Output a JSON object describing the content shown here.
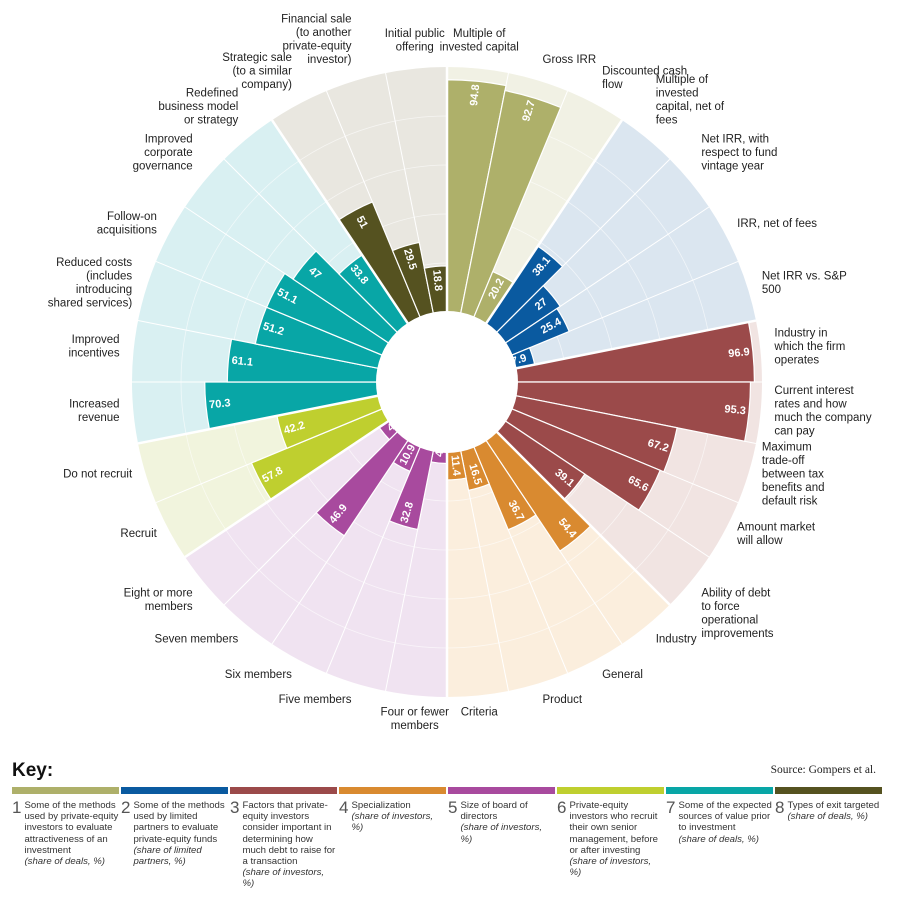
{
  "key_title": "Key:",
  "source": "Source: Gompers et al.",
  "key": [
    {
      "num": "1",
      "color": "#aeb06a",
      "text": "Some of the methods used by private-equity investors to evaluate attractiveness of an investment",
      "sub": "(share of deals, %)"
    },
    {
      "num": "2",
      "color": "#0a5aa0",
      "text": "Some of the methods used by limited partners to evaluate private-equity funds",
      "sub": "(share of limited partners, %)"
    },
    {
      "num": "3",
      "color": "#9b4a4a",
      "text": "Factors that private-equity investors consider important in determining how much debt to raise for a transaction",
      "sub": "(share of investors, %)"
    },
    {
      "num": "4",
      "color": "#d98a30",
      "text": "Specialization",
      "sub": "(share of investors, %)"
    },
    {
      "num": "5",
      "color": "#a84a9e",
      "text": "Size of board of directors",
      "sub": "(share of investors, %)"
    },
    {
      "num": "6",
      "color": "#bfcf2f",
      "text": "Private-equity investors who recruit their own senior management, before or after investing",
      "sub": "(share of investors, %)"
    },
    {
      "num": "7",
      "color": "#08a6a6",
      "text": "Some of the expected sources of value prior to investment",
      "sub": "(share of deals, %)"
    },
    {
      "num": "8",
      "color": "#555220",
      "text": "Types of exit targeted",
      "sub": "(share of deals, %)"
    }
  ],
  "chart_data": {
    "type": "radial-bar",
    "rmax": 100,
    "groups": [
      {
        "id": 1,
        "color": "#aeb06a",
        "bg": "#f1f1e4",
        "items": [
          {
            "label": "Multiple of invested capital",
            "value": 94.8
          },
          {
            "label": "Gross IRR",
            "value": 92.7
          },
          {
            "label": "Discounted cash flow",
            "value": 20.2
          }
        ]
      },
      {
        "id": 2,
        "color": "#0a5aa0",
        "bg": "#dbe6f0",
        "items": [
          {
            "label": "Multiple of invested capital, net of fees",
            "value": 38.1
          },
          {
            "label": "Net IRR, with respect to fund vintage year",
            "value": 27
          },
          {
            "label": "IRR, net of fees",
            "value": 25.4
          },
          {
            "label": "Net IRR vs. S&P 500",
            "value": 7.9
          }
        ]
      },
      {
        "id": 3,
        "color": "#9b4a4a",
        "bg": "#f1e4e2",
        "items": [
          {
            "label": "Industry in which the firm operates",
            "value": 96.9
          },
          {
            "label": "Current interest rates and how much the company can pay",
            "value": 95.3
          },
          {
            "label": "Maximum trade-off between tax benefits and default risk",
            "value": 67.2
          },
          {
            "label": "Amount market will allow",
            "value": 65.6
          },
          {
            "label": "Ability of debt to force operational improvements",
            "value": 39.1
          }
        ]
      },
      {
        "id": 4,
        "color": "#d98a30",
        "bg": "#fbeedd",
        "items": [
          {
            "label": "Industry",
            "value": 54.4
          },
          {
            "label": "General",
            "value": 36.7
          },
          {
            "label": "Product",
            "value": 16.5
          },
          {
            "label": "Criteria",
            "value": 11.4
          }
        ]
      },
      {
        "id": 5,
        "color": "#a84a9e",
        "bg": "#f0e3f1",
        "items": [
          {
            "label": "Four or fewer members",
            "value": 4.7
          },
          {
            "label": "Five members",
            "value": 32.8
          },
          {
            "label": "Six members",
            "value": 10.9
          },
          {
            "label": "Seven members",
            "value": 46.9
          },
          {
            "label": "Eight or more members",
            "value": 4.7
          }
        ]
      },
      {
        "id": 6,
        "color": "#bfcf2f",
        "bg": "#f1f4dd",
        "items": [
          {
            "label": "Recruit",
            "value": 57.8
          },
          {
            "label": "Do not recruit",
            "value": 42.2
          }
        ]
      },
      {
        "id": 7,
        "color": "#08a6a6",
        "bg": "#d9f0f2",
        "items": [
          {
            "label": "Increased revenue",
            "value": 70.3
          },
          {
            "label": "Improved incentives",
            "value": 61.1
          },
          {
            "label": "Reduced costs (includes introducing shared services)",
            "value": 51.2
          },
          {
            "label": "Follow-on acquisitions",
            "value": 51.1
          },
          {
            "label": "Improved corporate governance",
            "value": 47
          },
          {
            "label": "Redefined business model or strategy",
            "value": 33.8
          }
        ]
      },
      {
        "id": 8,
        "color": "#555220",
        "bg": "#e9e7e0",
        "items": [
          {
            "label": "Strategic sale (to a similar company)",
            "value": 51
          },
          {
            "label": "Financial sale (to another private-equity investor)",
            "value": 29.5
          },
          {
            "label": "Initial public offering",
            "value": 18.8
          }
        ]
      }
    ]
  }
}
